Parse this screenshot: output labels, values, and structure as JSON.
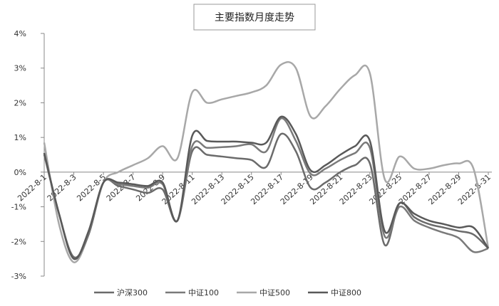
{
  "chart_data": {
    "type": "line",
    "title": "主要指数月度走势",
    "categories": [
      "2022-8-1",
      null,
      "2022-8-3",
      null,
      "2022-8-5",
      null,
      "2022-8-7",
      null,
      "2022-8-9",
      null,
      "2022-8-11",
      null,
      "2022-8-13",
      null,
      "2022-8-15",
      null,
      "2022-8-17",
      null,
      "2022-8-19",
      null,
      "2022-8-21",
      null,
      "2022-8-23",
      null,
      "2022-8-25",
      null,
      "2022-8-27",
      null,
      "2022-8-29",
      null,
      "2022-8-31"
    ],
    "series": [
      {
        "name": "沪深300",
        "color": "#6b6b6b",
        "values": [
          0.55,
          -1.2,
          -2.45,
          -1.8,
          -0.3,
          -0.4,
          -0.5,
          -0.6,
          -0.5,
          -1.4,
          0.6,
          0.5,
          0.45,
          0.4,
          0.35,
          0.15,
          1.1,
          0.6,
          -0.45,
          -0.3,
          0,
          0.2,
          0.25,
          -2.1,
          -0.9,
          -1.3,
          -1.5,
          -1.6,
          -1.7,
          -1.8,
          -2.2
        ]
      },
      {
        "name": "中证100",
        "color": "#7a7a7a",
        "values": [
          0.5,
          -1.2,
          -2.5,
          -1.75,
          -0.3,
          -0.35,
          -0.4,
          -0.45,
          -0.35,
          -1.4,
          0.75,
          0.7,
          0.72,
          0.75,
          0.8,
          0.6,
          1.55,
          0.9,
          -0.05,
          0.1,
          0.35,
          0.55,
          0.7,
          -1.85,
          -1.0,
          -1.4,
          -1.6,
          -1.75,
          -1.9,
          -2.3,
          -2.2
        ]
      },
      {
        "name": "中证500",
        "color": "#a8a8a8",
        "values": [
          0.85,
          -1.5,
          -2.6,
          -1.8,
          -0.3,
          0,
          0.2,
          0.4,
          0.75,
          0.4,
          2.3,
          2.0,
          2.1,
          2.2,
          2.3,
          2.5,
          3.1,
          3.0,
          1.6,
          1.9,
          2.4,
          2.8,
          2.85,
          -0.2,
          0.45,
          0.1,
          0.1,
          0.2,
          0.25,
          0.1,
          -2.2
        ]
      },
      {
        "name": "中证800",
        "color": "#595959",
        "values": [
          0.55,
          -1.2,
          -2.5,
          -1.7,
          -0.3,
          -0.3,
          -0.35,
          -0.4,
          -0.3,
          -1.4,
          1.05,
          0.9,
          0.88,
          0.88,
          0.85,
          0.85,
          1.6,
          1.1,
          0.05,
          0.2,
          0.5,
          0.75,
          0.9,
          -1.7,
          -0.9,
          -1.2,
          -1.4,
          -1.5,
          -1.6,
          -1.6,
          -2.2
        ]
      }
    ],
    "ylim": [
      -3,
      4
    ],
    "yticks": [
      {
        "value": -3,
        "label": "-3%"
      },
      {
        "value": -2,
        "label": "-2%"
      },
      {
        "value": -1,
        "label": "-1%"
      },
      {
        "value": 0,
        "label": "0%"
      },
      {
        "value": 1,
        "label": "1%"
      },
      {
        "value": 2,
        "label": "2%"
      },
      {
        "value": 3,
        "label": "3%"
      },
      {
        "value": 4,
        "label": "4%"
      }
    ]
  }
}
